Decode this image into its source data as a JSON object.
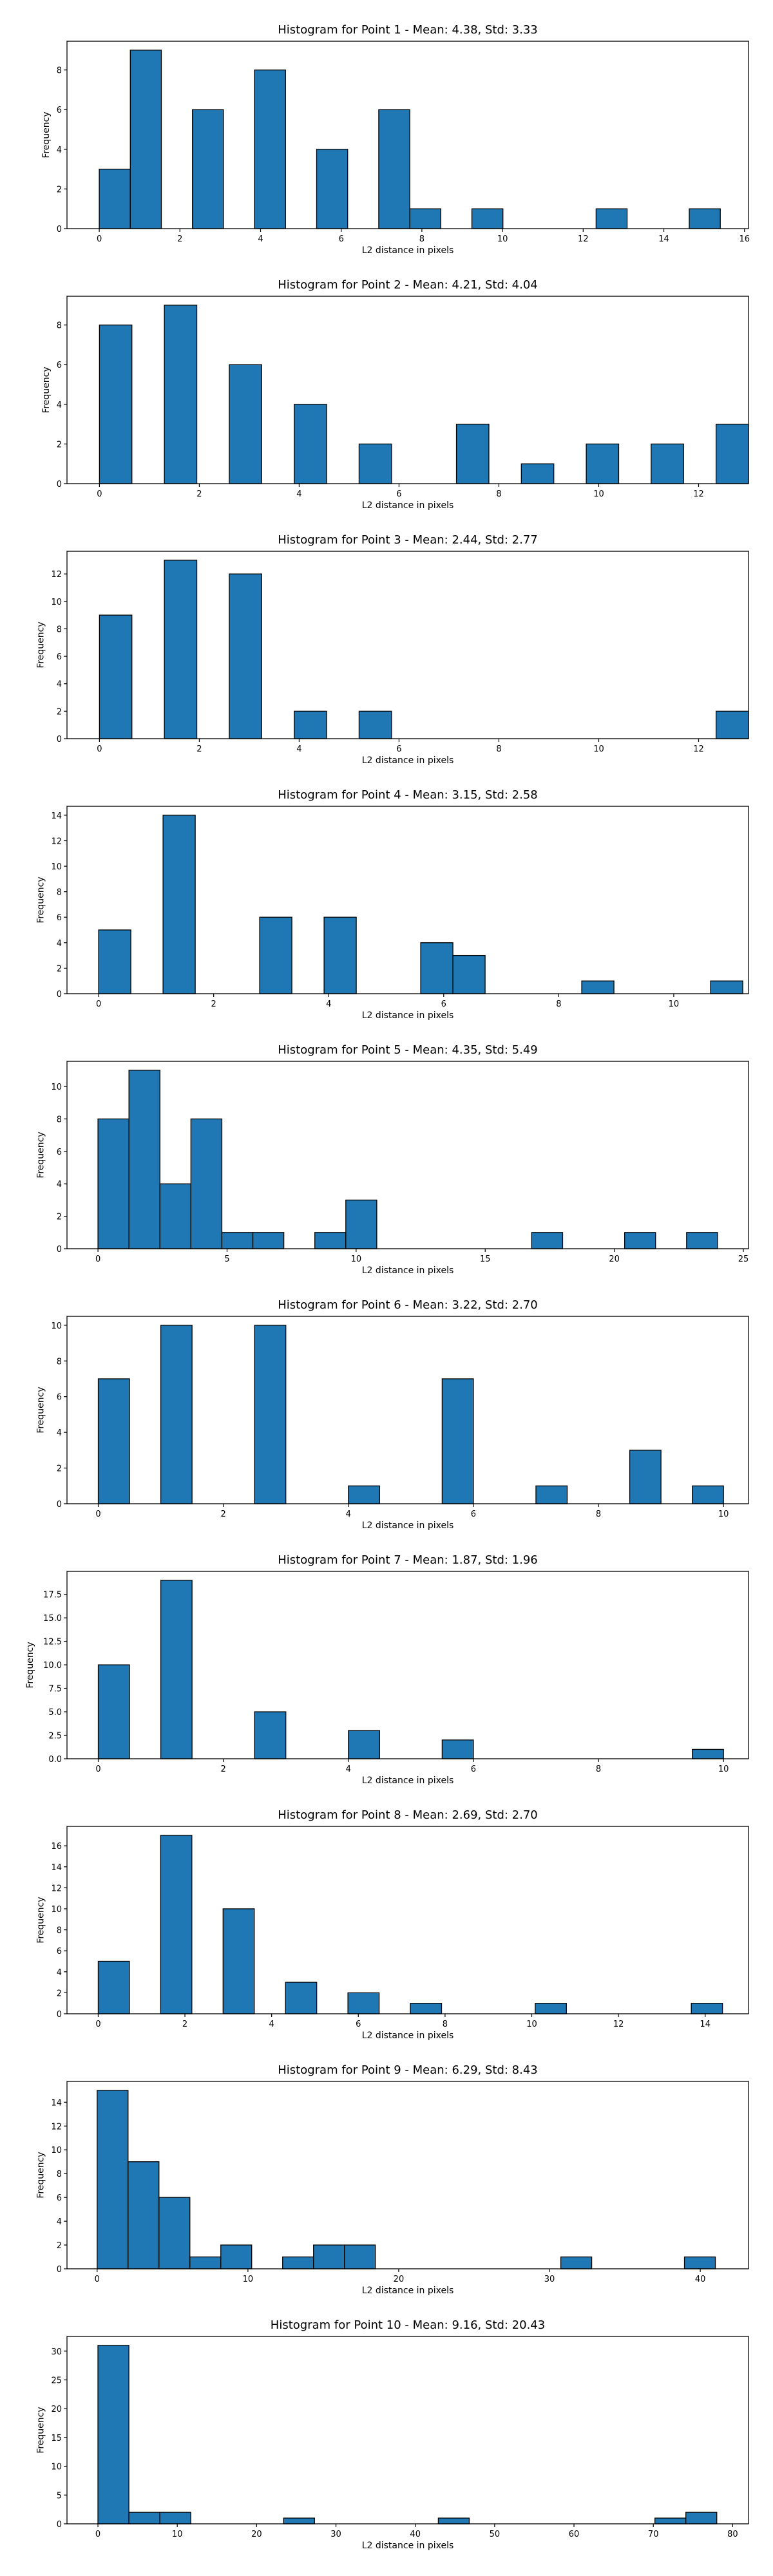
{
  "style": {
    "bar_color": "#1f77b4",
    "edge_color": "#000000",
    "background": "#ffffff"
  },
  "chart_data": [
    {
      "type": "histogram",
      "title": "Histogram for Point 1 - Mean: 4.38, Std: 3.33",
      "xlabel": "L2 distance in pixels",
      "ylabel": "Frequency",
      "xlim": [
        -0.8,
        16.1
      ],
      "ylim": [
        0,
        9.45
      ],
      "xticks": [
        0,
        2,
        4,
        6,
        8,
        10,
        12,
        14,
        16
      ],
      "xtick_labels": [
        "0",
        "2",
        "4",
        "6",
        "8",
        "10",
        "12",
        "14",
        "16"
      ],
      "yticks": [
        0,
        2,
        4,
        6,
        8
      ],
      "ytick_labels": [
        "0",
        "2",
        "4",
        "6",
        "8"
      ],
      "bin_width": 0.77,
      "bins_start": [
        0,
        0.77,
        1.54,
        2.31,
        3.08,
        3.85,
        4.62,
        5.39,
        6.16,
        6.93,
        7.7,
        8.47,
        9.24,
        10.01,
        10.78,
        11.55,
        12.32,
        13.09,
        13.86,
        14.63
      ],
      "counts": [
        3,
        9,
        0,
        6,
        0,
        8,
        0,
        4,
        0,
        6,
        1,
        0,
        1,
        0,
        0,
        0,
        1,
        0,
        0,
        1
      ]
    },
    {
      "type": "histogram",
      "title": "Histogram for Point 2 - Mean: 4.21, Std: 4.04",
      "xlabel": "L2 distance in pixels",
      "ylabel": "Frequency",
      "xlim": [
        -0.65,
        13.0
      ],
      "ylim": [
        0,
        9.45
      ],
      "xticks": [
        0,
        2,
        4,
        6,
        8,
        10,
        12
      ],
      "xtick_labels": [
        "0",
        "2",
        "4",
        "6",
        "8",
        "10",
        "12"
      ],
      "yticks": [
        0,
        2,
        4,
        6,
        8
      ],
      "ytick_labels": [
        "0",
        "2",
        "4",
        "6",
        "8"
      ],
      "bin_width": 0.65,
      "bins_start": [
        0,
        0.65,
        1.3,
        1.95,
        2.6,
        3.25,
        3.9,
        4.55,
        5.2,
        5.85,
        6.5,
        7.15,
        7.8,
        8.45,
        9.1,
        9.75,
        10.4,
        11.05,
        11.7,
        12.35
      ],
      "counts": [
        8,
        0,
        9,
        0,
        6,
        0,
        4,
        0,
        2,
        0,
        0,
        3,
        0,
        1,
        0,
        2,
        0,
        2,
        0,
        3
      ]
    },
    {
      "type": "histogram",
      "title": "Histogram for Point 3 - Mean: 2.44, Std: 2.77",
      "xlabel": "L2 distance in pixels",
      "ylabel": "Frequency",
      "xlim": [
        -0.65,
        13.0
      ],
      "ylim": [
        0,
        13.65
      ],
      "xticks": [
        0,
        2,
        4,
        6,
        8,
        10,
        12
      ],
      "xtick_labels": [
        "0",
        "2",
        "4",
        "6",
        "8",
        "10",
        "12"
      ],
      "yticks": [
        0,
        2,
        4,
        6,
        8,
        10,
        12
      ],
      "ytick_labels": [
        "0",
        "2",
        "4",
        "6",
        "8",
        "10",
        "12"
      ],
      "bin_width": 0.65,
      "bins_start": [
        0,
        0.65,
        1.3,
        1.95,
        2.6,
        3.25,
        3.9,
        4.55,
        5.2,
        5.85,
        6.5,
        7.15,
        7.8,
        8.45,
        9.1,
        9.75,
        10.4,
        11.05,
        11.7,
        12.35
      ],
      "counts": [
        9,
        0,
        13,
        0,
        12,
        0,
        2,
        0,
        2,
        0,
        0,
        0,
        0,
        0,
        0,
        0,
        0,
        0,
        0,
        2
      ]
    },
    {
      "type": "histogram",
      "title": "Histogram for Point 4 - Mean: 3.15, Std: 2.58",
      "xlabel": "L2 distance in pixels",
      "ylabel": "Frequency",
      "xlim": [
        -0.55,
        11.3
      ],
      "ylim": [
        0,
        14.7
      ],
      "xticks": [
        0,
        2,
        4,
        6,
        8,
        10
      ],
      "xtick_labels": [
        "0",
        "2",
        "4",
        "6",
        "8",
        "10"
      ],
      "yticks": [
        0,
        2,
        4,
        6,
        8,
        10,
        12,
        14
      ],
      "ytick_labels": [
        "0",
        "2",
        "4",
        "6",
        "8",
        "10",
        "12",
        "14"
      ],
      "bin_width": 0.56,
      "bins_start": [
        0,
        0.56,
        1.12,
        1.68,
        2.24,
        2.8,
        3.36,
        3.92,
        4.48,
        5.04,
        5.6,
        6.16,
        6.72,
        7.28,
        7.84,
        8.4,
        8.96,
        9.52,
        10.08,
        10.64
      ],
      "counts": [
        5,
        0,
        14,
        0,
        0,
        6,
        0,
        6,
        0,
        0,
        4,
        3,
        0,
        0,
        0,
        1,
        0,
        0,
        0,
        1
      ]
    },
    {
      "type": "histogram",
      "title": "Histogram for Point 5 - Mean: 4.35, Std: 5.49",
      "xlabel": "L2 distance in pixels",
      "ylabel": "Frequency",
      "xlim": [
        -1.2,
        25.2
      ],
      "ylim": [
        0,
        11.55
      ],
      "xticks": [
        0,
        5,
        10,
        15,
        20,
        25
      ],
      "xtick_labels": [
        "0",
        "5",
        "10",
        "15",
        "20",
        "25"
      ],
      "yticks": [
        0,
        2,
        4,
        6,
        8,
        10
      ],
      "ytick_labels": [
        "0",
        "2",
        "4",
        "6",
        "8",
        "10"
      ],
      "bin_width": 1.2,
      "bins_start": [
        0,
        1.2,
        2.4,
        3.6,
        4.8,
        6.0,
        7.2,
        8.4,
        9.6,
        10.8,
        12.0,
        13.2,
        14.4,
        15.6,
        16.8,
        18.0,
        19.2,
        20.4,
        21.6,
        22.8
      ],
      "counts": [
        8,
        11,
        4,
        8,
        1,
        1,
        0,
        1,
        3,
        0,
        0,
        0,
        0,
        0,
        1,
        0,
        0,
        1,
        0,
        1
      ]
    },
    {
      "type": "histogram",
      "title": "Histogram for Point 6 - Mean: 3.22, Std: 2.70",
      "xlabel": "L2 distance in pixels",
      "ylabel": "Frequency",
      "xlim": [
        -0.5,
        10.4
      ],
      "ylim": [
        0,
        10.5
      ],
      "xticks": [
        0,
        2,
        4,
        6,
        8,
        10
      ],
      "xtick_labels": [
        "0",
        "2",
        "4",
        "6",
        "8",
        "10"
      ],
      "yticks": [
        0,
        2,
        4,
        6,
        8,
        10
      ],
      "ytick_labels": [
        "0",
        "2",
        "4",
        "6",
        "8",
        "10"
      ],
      "bin_width": 0.5,
      "bins_start": [
        0,
        0.5,
        1.0,
        1.5,
        2.0,
        2.5,
        3.0,
        3.5,
        4.0,
        4.5,
        5.0,
        5.5,
        6.0,
        6.5,
        7.0,
        7.5,
        8.0,
        8.5,
        9.0,
        9.5
      ],
      "counts": [
        7,
        0,
        10,
        0,
        0,
        10,
        0,
        0,
        1,
        0,
        0,
        7,
        0,
        0,
        1,
        0,
        0,
        3,
        0,
        1
      ]
    },
    {
      "type": "histogram",
      "title": "Histogram for Point 7 - Mean: 1.87, Std: 1.96",
      "xlabel": "L2 distance in pixels",
      "ylabel": "Frequency",
      "xlim": [
        -0.5,
        10.4
      ],
      "ylim": [
        0,
        19.95
      ],
      "xticks": [
        0,
        2,
        4,
        6,
        8,
        10
      ],
      "xtick_labels": [
        "0",
        "2",
        "4",
        "6",
        "8",
        "10"
      ],
      "yticks": [
        0,
        2.5,
        5,
        7.5,
        10,
        12.5,
        15,
        17.5
      ],
      "ytick_labels": [
        "0.0",
        "2.5",
        "5.0",
        "7.5",
        "10.0",
        "12.5",
        "15.0",
        "17.5"
      ],
      "bin_width": 0.5,
      "bins_start": [
        0,
        0.5,
        1.0,
        1.5,
        2.0,
        2.5,
        3.0,
        3.5,
        4.0,
        4.5,
        5.0,
        5.5,
        6.0,
        6.5,
        7.0,
        7.5,
        8.0,
        8.5,
        9.0,
        9.5
      ],
      "counts": [
        10,
        0,
        19,
        0,
        0,
        5,
        0,
        0,
        3,
        0,
        0,
        2,
        0,
        0,
        0,
        0,
        0,
        0,
        0,
        1
      ]
    },
    {
      "type": "histogram",
      "title": "Histogram for Point 8 - Mean: 2.69, Std: 2.70",
      "xlabel": "L2 distance in pixels",
      "ylabel": "Frequency",
      "xlim": [
        -0.72,
        15.0
      ],
      "ylim": [
        0,
        17.85
      ],
      "xticks": [
        0,
        2,
        4,
        6,
        8,
        10,
        12,
        14
      ],
      "xtick_labels": [
        "0",
        "2",
        "4",
        "6",
        "8",
        "10",
        "12",
        "14"
      ],
      "yticks": [
        0,
        2,
        4,
        6,
        8,
        10,
        12,
        14,
        16
      ],
      "ytick_labels": [
        "0",
        "2",
        "4",
        "6",
        "8",
        "10",
        "12",
        "14",
        "16"
      ],
      "bin_width": 0.72,
      "bins_start": [
        0,
        0.72,
        1.44,
        2.16,
        2.88,
        3.6,
        4.32,
        5.04,
        5.76,
        6.48,
        7.2,
        7.92,
        8.64,
        9.36,
        10.08,
        10.8,
        11.52,
        12.24,
        12.96,
        13.68
      ],
      "counts": [
        5,
        0,
        17,
        0,
        10,
        0,
        3,
        0,
        2,
        0,
        1,
        0,
        0,
        0,
        1,
        0,
        0,
        0,
        0,
        1
      ]
    },
    {
      "type": "histogram",
      "title": "Histogram for Point 9 - Mean: 6.29, Std: 8.43",
      "xlabel": "L2 distance in pixels",
      "ylabel": "Frequency",
      "xlim": [
        -2.0,
        43.2
      ],
      "ylim": [
        0,
        15.75
      ],
      "xticks": [
        0,
        10,
        20,
        30,
        40
      ],
      "xtick_labels": [
        "0",
        "10",
        "20",
        "30",
        "40"
      ],
      "yticks": [
        0,
        2,
        4,
        6,
        8,
        10,
        12,
        14
      ],
      "ytick_labels": [
        "0",
        "2",
        "4",
        "6",
        "8",
        "10",
        "12",
        "14"
      ],
      "bin_width": 2.05,
      "bins_start": [
        0,
        2.05,
        4.1,
        6.15,
        8.2,
        10.25,
        12.3,
        14.35,
        16.4,
        18.45,
        20.5,
        22.55,
        24.6,
        26.65,
        28.7,
        30.75,
        32.8,
        34.85,
        36.9,
        38.95
      ],
      "counts": [
        15,
        9,
        6,
        1,
        2,
        0,
        1,
        2,
        2,
        0,
        0,
        0,
        0,
        0,
        0,
        1,
        0,
        0,
        0,
        1
      ]
    },
    {
      "type": "histogram",
      "title": "Histogram for Point 10 - Mean: 9.16, Std: 20.43",
      "xlabel": "L2 distance in pixels",
      "ylabel": "Frequency",
      "xlim": [
        -3.9,
        82.0
      ],
      "ylim": [
        0,
        32.55
      ],
      "xticks": [
        0,
        10,
        20,
        30,
        40,
        50,
        60,
        70,
        80
      ],
      "xtick_labels": [
        "0",
        "10",
        "20",
        "30",
        "40",
        "50",
        "60",
        "70",
        "80"
      ],
      "yticks": [
        0,
        5,
        10,
        15,
        20,
        25,
        30
      ],
      "ytick_labels": [
        "0",
        "5",
        "10",
        "15",
        "20",
        "25",
        "30"
      ],
      "bin_width": 3.9,
      "bins_start": [
        0,
        3.9,
        7.8,
        11.7,
        15.6,
        19.5,
        23.4,
        27.3,
        31.2,
        35.1,
        39.0,
        42.9,
        46.8,
        50.7,
        54.6,
        58.5,
        62.4,
        66.3,
        70.2,
        74.1
      ],
      "counts": [
        31,
        2,
        2,
        0,
        0,
        0,
        1,
        0,
        0,
        0,
        0,
        1,
        0,
        0,
        0,
        0,
        0,
        0,
        1,
        2
      ]
    }
  ]
}
